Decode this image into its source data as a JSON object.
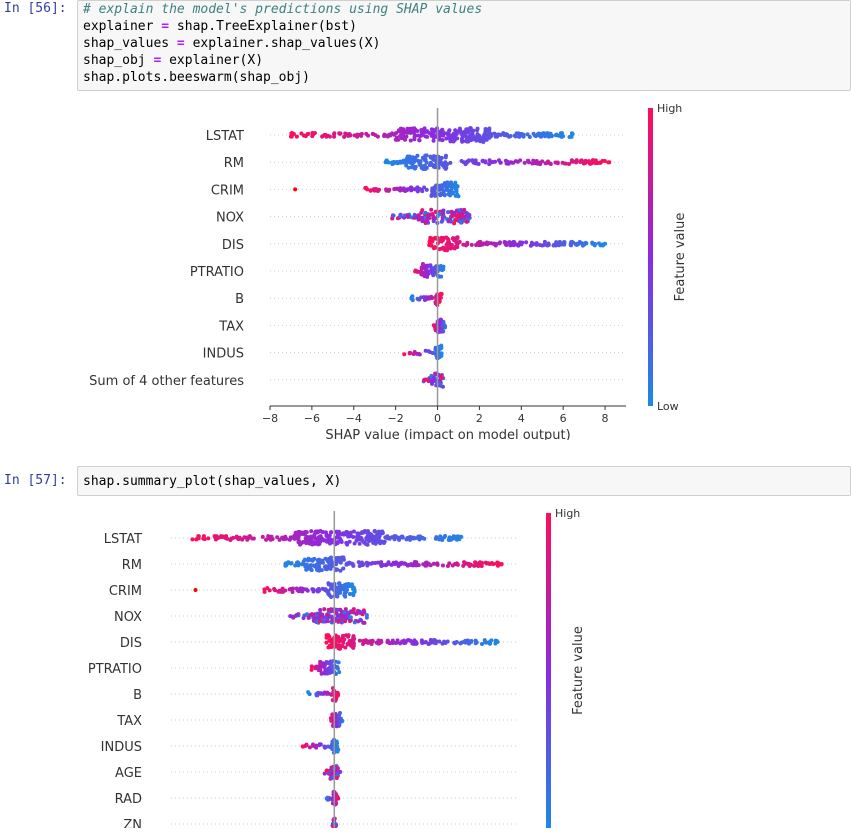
{
  "cells": [
    {
      "prompt": "In [56]:",
      "code": [
        {
          "tokens": [
            {
              "t": "# explain the model's predictions using SHAP values",
              "c": "cm-comment"
            }
          ]
        },
        {
          "tokens": [
            {
              "t": "explainer "
            },
            {
              "t": "=",
              "c": "cm-op"
            },
            {
              "t": " shap.TreeExplainer(bst)"
            }
          ]
        },
        {
          "tokens": [
            {
              "t": "shap_values "
            },
            {
              "t": "=",
              "c": "cm-op"
            },
            {
              "t": " explainer.shap_values(X)"
            }
          ]
        },
        {
          "tokens": [
            {
              "t": "shap_obj "
            },
            {
              "t": "=",
              "c": "cm-op"
            },
            {
              "t": " explainer(X)"
            }
          ]
        },
        {
          "tokens": [
            {
              "t": "shap.plots.beeswarm(shap_obj)"
            }
          ]
        }
      ]
    },
    {
      "prompt": "In [57]:",
      "code": [
        {
          "tokens": [
            {
              "t": "shap.summary_plot(shap_values, X)"
            }
          ]
        }
      ]
    }
  ],
  "colors": {
    "high": "#ff0d57",
    "low": "#1e88e5",
    "prompt": "#303F9F",
    "input_bg": "#f7f7f7",
    "zero_line": "#999999",
    "row_grid": "#cccccc"
  },
  "chart_data": [
    {
      "type": "scatter",
      "subtype": "beeswarm",
      "xlabel": "SHAP value (impact on model output)",
      "xticks": [
        -8,
        -6,
        -4,
        -2,
        0,
        2,
        4,
        6,
        8
      ],
      "xlim": [
        -8,
        9
      ],
      "colorbar": {
        "label": "Feature value",
        "high": "High",
        "low": "Low"
      },
      "grid": false,
      "features": [
        {
          "name": "LSTAT",
          "spread": [
            -7,
            6.5
          ],
          "dense": [
            -2,
            2.5
          ],
          "low_side": "right"
        },
        {
          "name": "RM",
          "spread": [
            -2.5,
            8.2
          ],
          "dense": [
            -1.5,
            0.5
          ],
          "low_side": "left",
          "outliers": [
            3.5,
            7.8,
            8.2
          ]
        },
        {
          "name": "CRIM",
          "spread": [
            -3.5,
            1
          ],
          "dense": [
            -0.3,
            1
          ],
          "low_side": "right",
          "outliers": [
            -6.8
          ]
        },
        {
          "name": "NOX",
          "spread": [
            -2.2,
            1.6
          ],
          "dense": [
            -1,
            1.5
          ],
          "low_side": "mixed"
        },
        {
          "name": "DIS",
          "spread": [
            -0.4,
            8
          ],
          "dense": [
            -0.4,
            1
          ],
          "low_side": "right",
          "outliers": [
            2.3,
            3.5,
            4,
            6,
            6.7,
            7.4,
            8
          ]
        },
        {
          "name": "PTRATIO",
          "spread": [
            -1.2,
            0.3
          ],
          "dense": [
            -0.8,
            0.3
          ],
          "low_side": "right"
        },
        {
          "name": "B",
          "spread": [
            -1.3,
            0.2
          ],
          "dense": [
            -0.1,
            0.2
          ],
          "low_side": "left"
        },
        {
          "name": "TAX",
          "spread": [
            -0.2,
            0.4
          ],
          "dense": [
            -0.1,
            0.3
          ],
          "low_side": "right"
        },
        {
          "name": "INDUS",
          "spread": [
            -1.6,
            0.2
          ],
          "dense": [
            -0.1,
            0.2
          ],
          "low_side": "right"
        },
        {
          "name": "Sum of 4 other features",
          "spread": [
            -0.7,
            0.3
          ],
          "dense": [
            -0.3,
            0.3
          ],
          "low_side": "mixed"
        }
      ]
    },
    {
      "type": "scatter",
      "subtype": "beeswarm",
      "xlabel": "",
      "xlim": [
        -8,
        9
      ],
      "colorbar": {
        "label": "Feature value",
        "high": "High",
        "low": ""
      },
      "grid": false,
      "features": [
        {
          "name": "LSTAT",
          "spread": [
            -7,
            6.5
          ],
          "dense": [
            -2,
            2.5
          ],
          "low_side": "right"
        },
        {
          "name": "RM",
          "spread": [
            -2.5,
            8.2
          ],
          "dense": [
            -1.5,
            0.5
          ],
          "low_side": "left",
          "outliers": [
            3.5,
            7.8,
            8.2
          ]
        },
        {
          "name": "CRIM",
          "spread": [
            -3.5,
            1
          ],
          "dense": [
            -0.3,
            1
          ],
          "low_side": "right",
          "outliers": [
            -6.8
          ]
        },
        {
          "name": "NOX",
          "spread": [
            -2.2,
            1.6
          ],
          "dense": [
            -1,
            1.5
          ],
          "low_side": "mixed"
        },
        {
          "name": "DIS",
          "spread": [
            -0.4,
            8
          ],
          "dense": [
            -0.4,
            1
          ],
          "low_side": "right",
          "outliers": [
            2.3,
            3.5,
            4,
            6,
            6.7,
            7.4,
            8
          ]
        },
        {
          "name": "PTRATIO",
          "spread": [
            -1.2,
            0.3
          ],
          "dense": [
            -0.8,
            0.3
          ],
          "low_side": "right"
        },
        {
          "name": "B",
          "spread": [
            -1.3,
            0.2
          ],
          "dense": [
            -0.1,
            0.2
          ],
          "low_side": "left"
        },
        {
          "name": "TAX",
          "spread": [
            -0.2,
            0.4
          ],
          "dense": [
            -0.1,
            0.3
          ],
          "low_side": "right"
        },
        {
          "name": "INDUS",
          "spread": [
            -1.6,
            0.2
          ],
          "dense": [
            -0.1,
            0.2
          ],
          "low_side": "right"
        },
        {
          "name": "AGE",
          "spread": [
            -0.5,
            0.3
          ],
          "dense": [
            -0.2,
            0.2
          ],
          "low_side": "mixed"
        },
        {
          "name": "RAD",
          "spread": [
            -0.4,
            0.2
          ],
          "dense": [
            -0.1,
            0.1
          ],
          "low_side": "left"
        },
        {
          "name": "ZN",
          "spread": [
            -0.1,
            0.1
          ],
          "dense": [
            -0.05,
            0.05
          ],
          "low_side": "mixed"
        }
      ]
    }
  ]
}
